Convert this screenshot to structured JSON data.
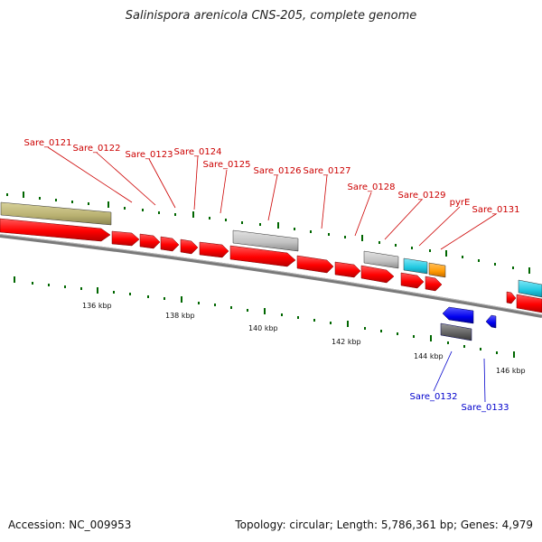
{
  "title": "Salinispora arenicola CNS-205, complete genome",
  "footer": {
    "accession": "Accession: NC_009953",
    "summary": "Topology: circular; Length: 5,786,361 bp; Genes: 4,979"
  },
  "colors": {
    "forward_label": "#cc0000",
    "reverse_label": "#0000cc",
    "cds_red": "#ff0000",
    "rna_gray": "#c0c0c0",
    "rna_olive": "#b8b070",
    "cyan": "#20c8e0",
    "orange": "#ff9900",
    "blue": "#0000ee",
    "dark_gray": "#606060",
    "tick_green": "#006600",
    "backbone": "#808080"
  },
  "scale_labels": [
    "136 kbp",
    "138 kbp",
    "140 kbp",
    "142 kbp",
    "144 kbp",
    "146 kbp"
  ],
  "forward_gene_labels": [
    "Sare_0121",
    "Sare_0122",
    "Sare_0123",
    "Sare_0124",
    "Sare_0125",
    "Sare_0126",
    "Sare_0127",
    "Sare_0128",
    "Sare_0129",
    "pyrE",
    "Sare_0131"
  ],
  "reverse_gene_labels": [
    "Sare_0132",
    "Sare_0133"
  ]
}
